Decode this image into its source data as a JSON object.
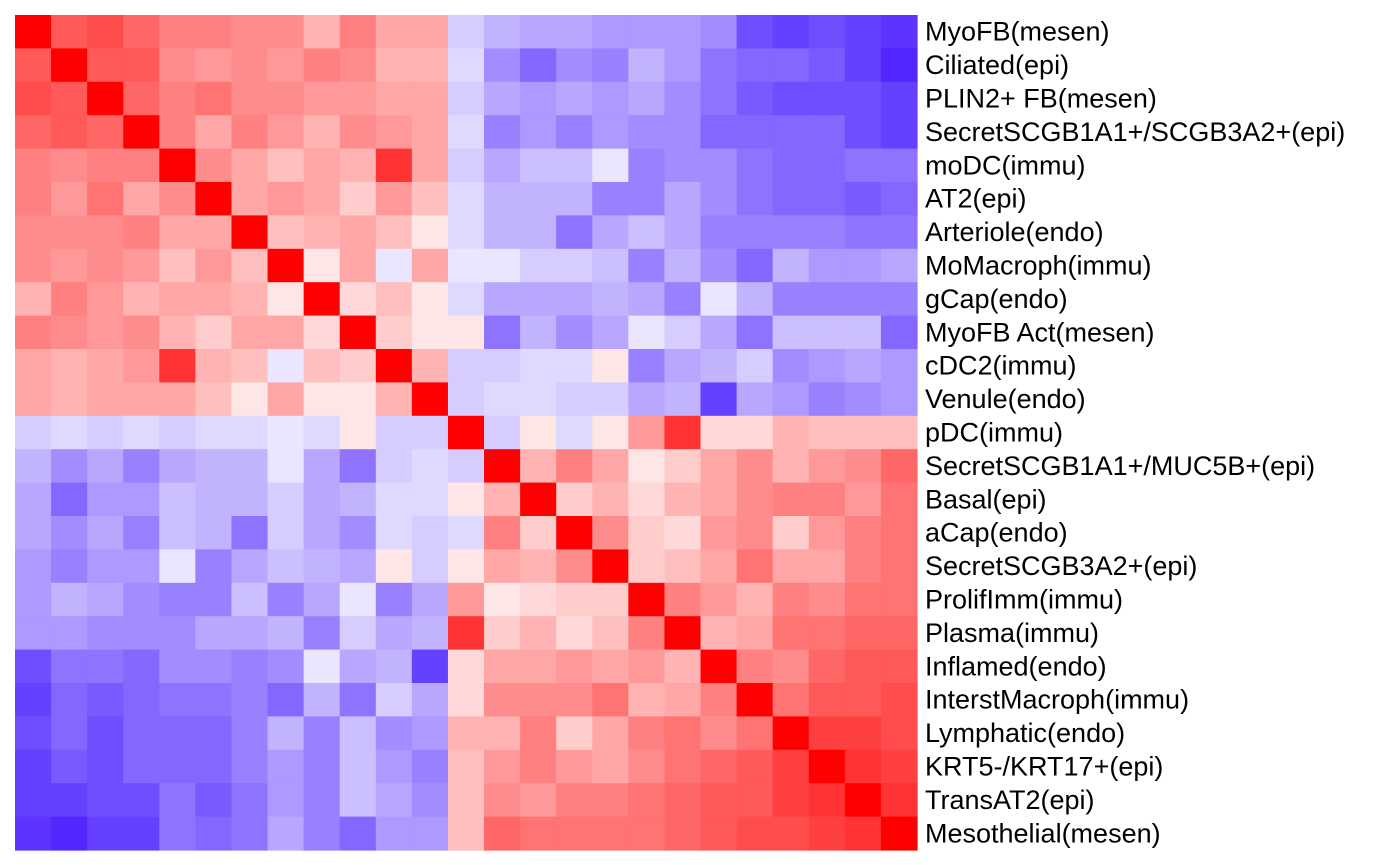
{
  "chart_data": {
    "type": "heatmap",
    "title": "",
    "xlabel": "",
    "ylabel": "",
    "color_scale": {
      "low": "#3300ff",
      "mid": "#ffffff",
      "high": "#ff0000",
      "range": [
        -1,
        1
      ]
    },
    "rows": [
      "MyoFB(mesen)",
      "Ciliated(epi)",
      "PLIN2+ FB(mesen)",
      "SecretSCGB1A1+/SCGB3A2+(epi)",
      "moDC(immu)",
      "AT2(epi)",
      "Arteriole(endo)",
      "MoMacroph(immu)",
      "gCap(endo)",
      "MyoFB Act(mesen)",
      "cDC2(immu)",
      "Venule(endo)",
      "pDC(immu)",
      "SecretSCGB1A1+/MUC5B+(epi)",
      "Basal(epi)",
      "aCap(endo)",
      "SecretSCGB3A2+(epi)",
      "ProlifImm(immu)",
      "Plasma(immu)",
      "Inflamed(endo)",
      "InterstMacroph(immu)",
      "Lymphatic(endo)",
      "KRT5-/KRT17+(epi)",
      "TransAT2(epi)",
      "Mesothelial(mesen)"
    ],
    "values": [
      [
        1.0,
        0.65,
        0.7,
        0.6,
        0.5,
        0.5,
        0.45,
        0.45,
        0.3,
        0.5,
        0.35,
        0.35,
        -0.2,
        -0.3,
        -0.35,
        -0.35,
        -0.4,
        -0.4,
        -0.4,
        -0.45,
        -0.7,
        -0.75,
        -0.7,
        -0.75,
        -0.8
      ],
      [
        0.65,
        1.0,
        0.65,
        0.65,
        0.45,
        0.4,
        0.45,
        0.4,
        0.5,
        0.45,
        0.3,
        0.3,
        -0.15,
        -0.45,
        -0.6,
        -0.45,
        -0.5,
        -0.3,
        -0.4,
        -0.55,
        -0.6,
        -0.6,
        -0.65,
        -0.75,
        -0.85
      ],
      [
        0.7,
        0.65,
        1.0,
        0.6,
        0.5,
        0.55,
        0.45,
        0.45,
        0.4,
        0.4,
        0.35,
        0.35,
        -0.2,
        -0.35,
        -0.4,
        -0.35,
        -0.4,
        -0.35,
        -0.45,
        -0.55,
        -0.65,
        -0.7,
        -0.7,
        -0.7,
        -0.75
      ],
      [
        0.6,
        0.65,
        0.6,
        1.0,
        0.5,
        0.35,
        0.5,
        0.4,
        0.3,
        0.45,
        0.4,
        0.35,
        -0.15,
        -0.5,
        -0.4,
        -0.5,
        -0.4,
        -0.45,
        -0.45,
        -0.6,
        -0.6,
        -0.6,
        -0.6,
        -0.7,
        -0.75
      ],
      [
        0.5,
        0.45,
        0.5,
        0.5,
        1.0,
        0.45,
        0.35,
        0.25,
        0.35,
        0.3,
        0.8,
        0.35,
        -0.2,
        -0.35,
        -0.25,
        -0.25,
        -0.1,
        -0.5,
        -0.45,
        -0.45,
        -0.55,
        -0.6,
        -0.6,
        -0.55,
        -0.55
      ],
      [
        0.5,
        0.4,
        0.55,
        0.35,
        0.45,
        1.0,
        0.35,
        0.4,
        0.35,
        0.2,
        0.4,
        0.25,
        -0.15,
        -0.3,
        -0.3,
        -0.3,
        -0.5,
        -0.5,
        -0.35,
        -0.45,
        -0.55,
        -0.6,
        -0.6,
        -0.65,
        -0.6
      ],
      [
        0.45,
        0.45,
        0.45,
        0.5,
        0.35,
        0.35,
        1.0,
        0.25,
        0.3,
        0.35,
        0.25,
        0.1,
        -0.15,
        -0.3,
        -0.3,
        -0.55,
        -0.35,
        -0.25,
        -0.35,
        -0.5,
        -0.5,
        -0.5,
        -0.5,
        -0.55,
        -0.55
      ],
      [
        0.45,
        0.4,
        0.45,
        0.4,
        0.25,
        0.4,
        0.25,
        1.0,
        0.1,
        0.35,
        -0.1,
        0.35,
        -0.1,
        -0.1,
        -0.2,
        -0.2,
        -0.25,
        -0.5,
        -0.3,
        -0.45,
        -0.6,
        -0.3,
        -0.4,
        -0.4,
        -0.35
      ],
      [
        0.3,
        0.5,
        0.4,
        0.3,
        0.35,
        0.35,
        0.3,
        0.1,
        1.0,
        0.15,
        0.25,
        0.1,
        -0.15,
        -0.35,
        -0.35,
        -0.35,
        -0.3,
        -0.35,
        -0.5,
        -0.1,
        -0.3,
        -0.5,
        -0.5,
        -0.5,
        -0.5
      ],
      [
        0.5,
        0.45,
        0.4,
        0.45,
        0.3,
        0.2,
        0.35,
        0.35,
        0.15,
        1.0,
        0.2,
        0.1,
        0.1,
        -0.55,
        -0.3,
        -0.45,
        -0.35,
        -0.1,
        -0.2,
        -0.35,
        -0.55,
        -0.25,
        -0.25,
        -0.25,
        -0.6
      ],
      [
        0.35,
        0.3,
        0.35,
        0.4,
        0.8,
        0.3,
        0.25,
        -0.1,
        0.25,
        0.2,
        1.0,
        0.3,
        -0.2,
        -0.2,
        -0.15,
        -0.15,
        0.1,
        -0.5,
        -0.35,
        -0.3,
        -0.2,
        -0.45,
        -0.4,
        -0.35,
        -0.4
      ],
      [
        0.35,
        0.3,
        0.35,
        0.35,
        0.35,
        0.25,
        0.1,
        0.35,
        0.1,
        0.1,
        0.3,
        1.0,
        -0.2,
        -0.15,
        -0.15,
        -0.2,
        -0.2,
        -0.35,
        -0.3,
        -0.75,
        -0.35,
        -0.4,
        -0.5,
        -0.45,
        -0.4
      ],
      [
        -0.2,
        -0.15,
        -0.2,
        -0.15,
        -0.2,
        -0.15,
        -0.15,
        -0.1,
        -0.15,
        0.1,
        -0.2,
        -0.2,
        1.0,
        -0.2,
        0.1,
        -0.15,
        0.1,
        0.4,
        0.8,
        0.15,
        0.15,
        0.3,
        0.25,
        0.25,
        0.25
      ],
      [
        -0.3,
        -0.45,
        -0.35,
        -0.5,
        -0.35,
        -0.3,
        -0.3,
        -0.1,
        -0.35,
        -0.55,
        -0.2,
        -0.15,
        -0.2,
        1.0,
        0.3,
        0.5,
        0.35,
        0.1,
        0.2,
        0.35,
        0.45,
        0.3,
        0.4,
        0.45,
        0.6
      ],
      [
        -0.35,
        -0.6,
        -0.4,
        -0.4,
        -0.25,
        -0.3,
        -0.3,
        -0.2,
        -0.35,
        -0.3,
        -0.15,
        -0.15,
        0.1,
        0.3,
        1.0,
        0.2,
        0.3,
        0.15,
        0.3,
        0.35,
        0.45,
        0.5,
        0.5,
        0.4,
        0.55
      ],
      [
        -0.35,
        -0.45,
        -0.35,
        -0.5,
        -0.25,
        -0.3,
        -0.55,
        -0.2,
        -0.35,
        -0.45,
        -0.15,
        -0.2,
        -0.15,
        0.5,
        0.2,
        1.0,
        0.45,
        0.2,
        0.15,
        0.4,
        0.45,
        0.2,
        0.4,
        0.5,
        0.55
      ],
      [
        -0.4,
        -0.5,
        -0.4,
        -0.4,
        -0.1,
        -0.5,
        -0.35,
        -0.25,
        -0.3,
        -0.35,
        0.1,
        -0.2,
        0.1,
        0.35,
        0.3,
        0.45,
        1.0,
        0.2,
        0.25,
        0.35,
        0.55,
        0.35,
        0.35,
        0.5,
        0.55
      ],
      [
        -0.4,
        -0.3,
        -0.35,
        -0.45,
        -0.5,
        -0.5,
        -0.25,
        -0.5,
        -0.35,
        -0.1,
        -0.5,
        -0.35,
        0.4,
        0.1,
        0.15,
        0.2,
        0.2,
        1.0,
        0.5,
        0.4,
        0.3,
        0.5,
        0.45,
        0.55,
        0.55
      ],
      [
        -0.4,
        -0.4,
        -0.45,
        -0.45,
        -0.45,
        -0.35,
        -0.35,
        -0.3,
        -0.5,
        -0.2,
        -0.35,
        -0.3,
        0.8,
        0.2,
        0.3,
        0.15,
        0.25,
        0.5,
        1.0,
        0.3,
        0.35,
        0.55,
        0.55,
        0.6,
        0.6
      ],
      [
        -0.7,
        -0.55,
        -0.55,
        -0.6,
        -0.45,
        -0.45,
        -0.5,
        -0.45,
        -0.1,
        -0.35,
        -0.3,
        -0.75,
        0.15,
        0.35,
        0.35,
        0.4,
        0.35,
        0.4,
        0.3,
        1.0,
        0.5,
        0.45,
        0.6,
        0.65,
        0.65
      ],
      [
        -0.75,
        -0.6,
        -0.65,
        -0.6,
        -0.55,
        -0.55,
        -0.5,
        -0.6,
        -0.3,
        -0.55,
        -0.2,
        -0.35,
        0.15,
        0.45,
        0.45,
        0.45,
        0.55,
        0.3,
        0.35,
        0.5,
        1.0,
        0.55,
        0.65,
        0.65,
        0.7
      ],
      [
        -0.7,
        -0.6,
        -0.7,
        -0.6,
        -0.6,
        -0.6,
        -0.5,
        -0.3,
        -0.5,
        -0.25,
        -0.45,
        -0.4,
        0.3,
        0.3,
        0.5,
        0.2,
        0.35,
        0.5,
        0.55,
        0.45,
        0.55,
        1.0,
        0.75,
        0.75,
        0.7
      ],
      [
        -0.75,
        -0.65,
        -0.7,
        -0.6,
        -0.6,
        -0.6,
        -0.5,
        -0.4,
        -0.5,
        -0.25,
        -0.4,
        -0.5,
        0.25,
        0.4,
        0.5,
        0.4,
        0.35,
        0.45,
        0.55,
        0.6,
        0.65,
        0.75,
        1.0,
        0.8,
        0.75
      ],
      [
        -0.75,
        -0.75,
        -0.7,
        -0.7,
        -0.55,
        -0.65,
        -0.55,
        -0.4,
        -0.5,
        -0.25,
        -0.35,
        -0.45,
        0.25,
        0.45,
        0.4,
        0.5,
        0.5,
        0.55,
        0.6,
        0.65,
        0.65,
        0.75,
        0.8,
        1.0,
        0.8
      ],
      [
        -0.8,
        -0.85,
        -0.75,
        -0.75,
        -0.55,
        -0.6,
        -0.55,
        -0.35,
        -0.5,
        -0.6,
        -0.4,
        -0.4,
        0.25,
        0.6,
        0.55,
        0.55,
        0.55,
        0.55,
        0.6,
        0.65,
        0.7,
        0.7,
        0.75,
        0.8,
        1.0
      ]
    ]
  }
}
